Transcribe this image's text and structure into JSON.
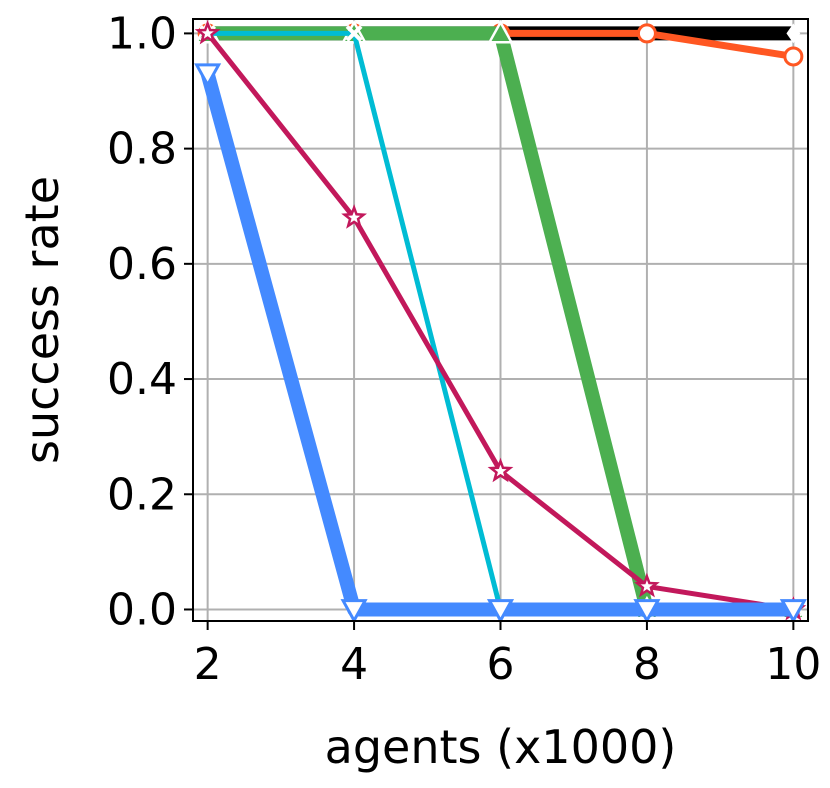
{
  "chart_data": {
    "type": "line",
    "xlabel": "agents (x1000)",
    "ylabel": "success rate",
    "x": [
      2,
      4,
      6,
      8,
      10
    ],
    "xticks": [
      "2",
      "4",
      "6",
      "8",
      "10"
    ],
    "yticks": [
      "0.0",
      "0.2",
      "0.4",
      "0.6",
      "0.8",
      "1.0"
    ],
    "xlim": [
      1.8,
      10.2
    ],
    "ylim": [
      -0.02,
      1.025
    ],
    "grid": true,
    "series": [
      {
        "color": "#000000",
        "marker": "diamond",
        "width": "thick",
        "values": [
          1.0,
          1.0,
          1.0,
          1.0,
          1.0
        ]
      },
      {
        "color": "#ff5722",
        "marker": "circle",
        "width": "medium",
        "values": [
          1.0,
          1.0,
          1.0,
          1.0,
          0.96
        ]
      },
      {
        "color": "#4caf50",
        "marker": "triangle-up",
        "width": "thick",
        "values": [
          1.0,
          1.0,
          1.0,
          0.0,
          0.0
        ]
      },
      {
        "color": "#00bcd4",
        "marker": "x",
        "width": "thin",
        "values": [
          1.0,
          1.0,
          0.0,
          0.0,
          0.0
        ]
      },
      {
        "color": "#c2185b",
        "marker": "star",
        "width": "thin",
        "values": [
          1.0,
          0.68,
          0.24,
          0.04,
          0.0
        ]
      },
      {
        "color": "#448aff",
        "marker": "triangle-down",
        "width": "thick",
        "values": [
          0.93,
          0.0,
          0.0,
          0.0,
          0.0
        ]
      }
    ]
  }
}
